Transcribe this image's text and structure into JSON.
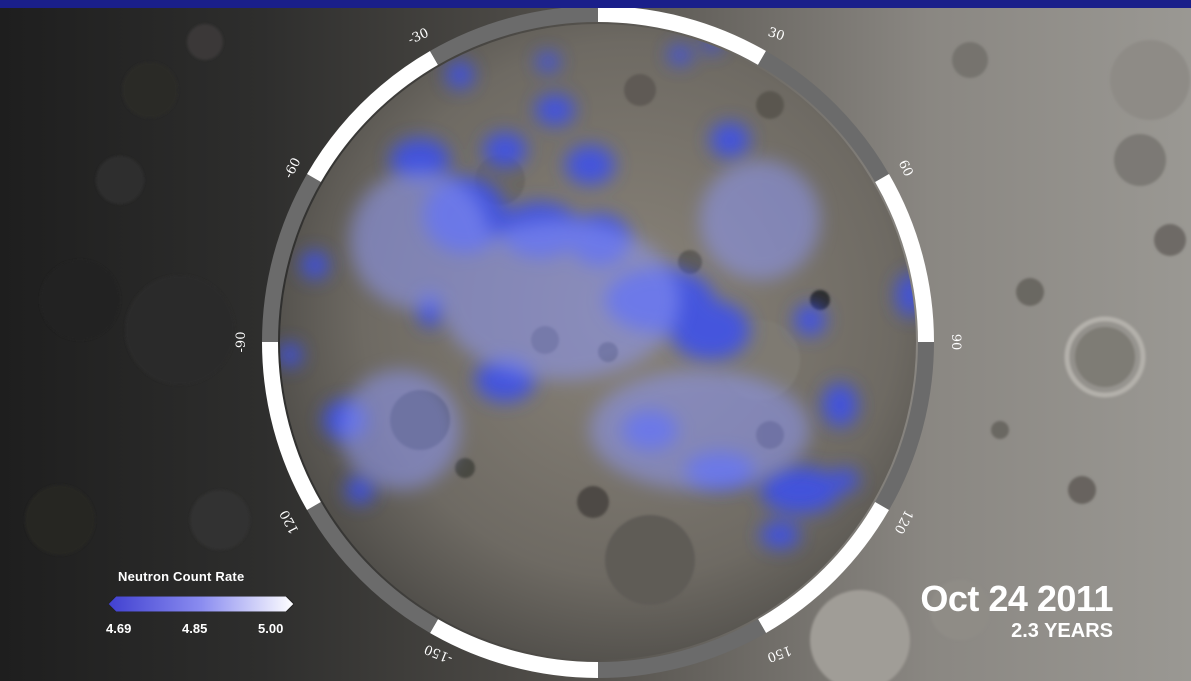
{
  "legend": {
    "title": "Neutron Count Rate",
    "min_label": "4.69",
    "mid_label": "4.85",
    "max_label": "5.00",
    "colors": [
      "#4a4ad8",
      "#8a8cf0",
      "#ffffff"
    ]
  },
  "timestamp": {
    "date": "Oct 24 2011",
    "elapsed": "2.3 YEARS"
  },
  "ring": {
    "labels": [
      "30",
      "60",
      "90",
      "120",
      "150",
      "-150",
      "120",
      "-90",
      "-60",
      "-30"
    ]
  },
  "colors": {
    "top_bar": "#1a1f8a",
    "ring_white": "#ffffff",
    "ring_gray": "#6b6b6b",
    "hydrogen_blue": "#3a4ff0"
  }
}
